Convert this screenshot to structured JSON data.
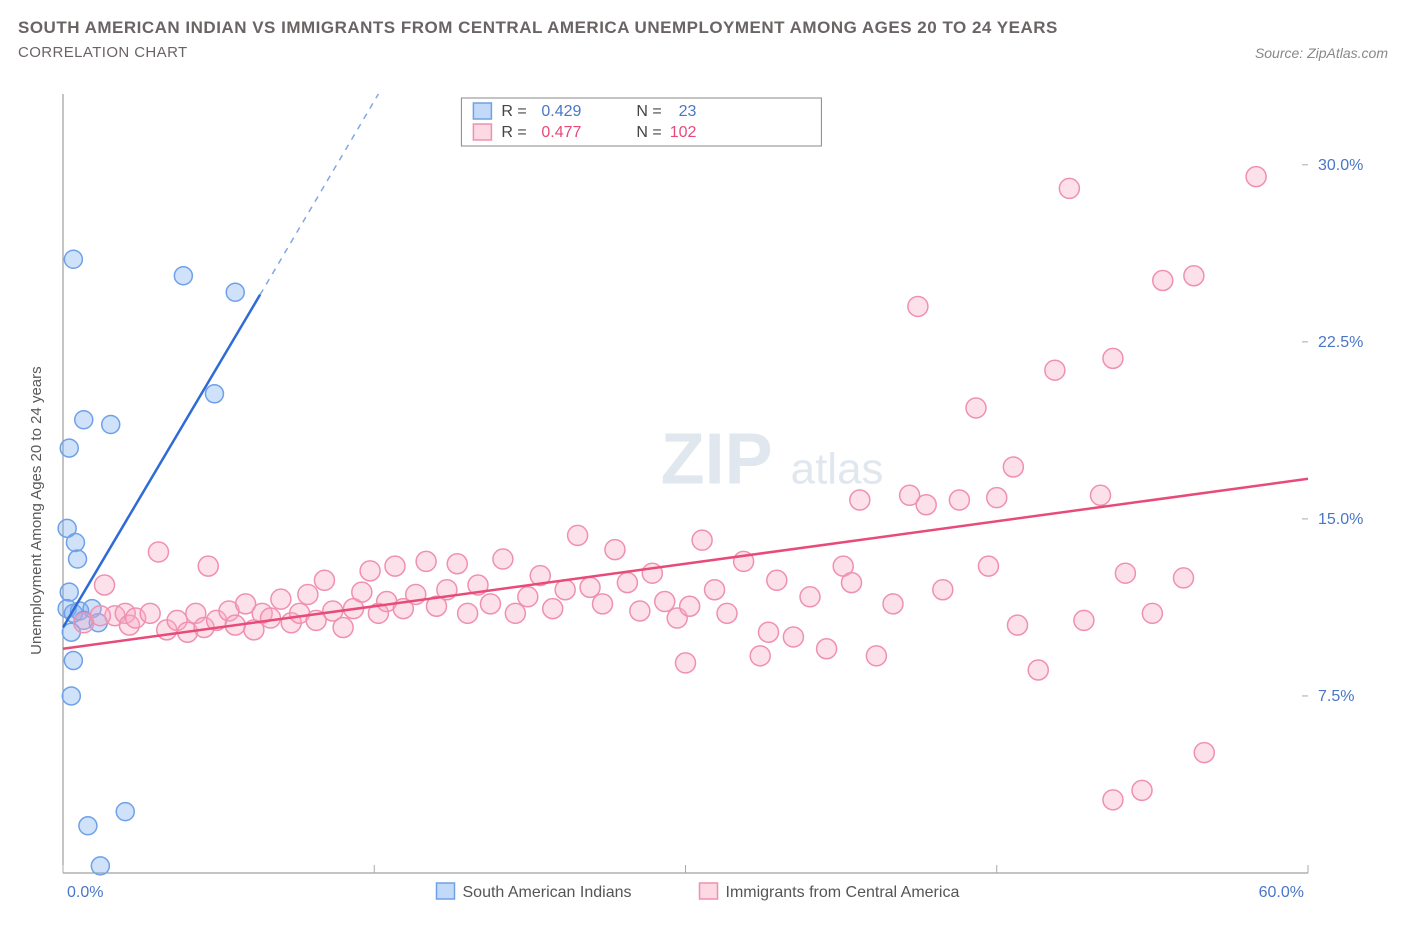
{
  "title": "SOUTH AMERICAN INDIAN VS IMMIGRANTS FROM CENTRAL AMERICA UNEMPLOYMENT AMONG AGES 20 TO 24 YEARS",
  "subtitle": "CORRELATION CHART",
  "source": "Source: ZipAtlas.com",
  "watermark_a": "ZIP",
  "watermark_b": "atlas",
  "chart": {
    "type": "scatter",
    "y_axis_title": "Unemployment Among Ages 20 to 24 years",
    "xlim": [
      0,
      60
    ],
    "ylim": [
      0,
      33
    ],
    "x_ticks": [
      {
        "v": 0,
        "label": "0.0%"
      },
      {
        "v": 60,
        "label": "60.0%"
      }
    ],
    "x_minor_ticks": [
      15,
      30,
      45
    ],
    "y_ticks": [
      {
        "v": 7.5,
        "label": "7.5%"
      },
      {
        "v": 15.0,
        "label": "15.0%"
      },
      {
        "v": 22.5,
        "label": "22.5%"
      },
      {
        "v": 30.0,
        "label": "30.0%"
      }
    ],
    "plot_bg": "#ffffff",
    "grid_color": "#aaaaaa",
    "series": [
      {
        "name": "South American Indians",
        "color_fill": "rgba(120,170,240,0.35)",
        "color_stroke": "#6fa1e8",
        "trend_color": "#2e6bd6",
        "marker_r": 9,
        "R": "0.429",
        "N": "23",
        "trend": {
          "x1": 0,
          "y1": 10.4,
          "x2": 9.5,
          "y2": 24.5
        },
        "trend_ext": {
          "x1": 9.5,
          "y1": 24.5,
          "x2": 15.2,
          "y2": 33
        },
        "points": [
          [
            0.5,
            26.0
          ],
          [
            5.8,
            25.3
          ],
          [
            8.3,
            24.6
          ],
          [
            1.0,
            19.2
          ],
          [
            2.3,
            19.0
          ],
          [
            7.3,
            20.3
          ],
          [
            0.3,
            18.0
          ],
          [
            0.2,
            14.6
          ],
          [
            0.6,
            14.0
          ],
          [
            0.7,
            13.3
          ],
          [
            0.3,
            11.9
          ],
          [
            0.2,
            11.2
          ],
          [
            0.5,
            11.0
          ],
          [
            0.8,
            11.1
          ],
          [
            1.4,
            11.2
          ],
          [
            1.0,
            10.7
          ],
          [
            1.7,
            10.6
          ],
          [
            0.4,
            10.2
          ],
          [
            0.5,
            9.0
          ],
          [
            0.4,
            7.5
          ],
          [
            3.0,
            2.6
          ],
          [
            1.2,
            2.0
          ],
          [
            1.8,
            0.3
          ]
        ]
      },
      {
        "name": "Immigrants from Central America",
        "color_fill": "rgba(250,170,195,0.35)",
        "color_stroke": "#f090b0",
        "trend_color": "#e84a7a",
        "marker_r": 10,
        "R": "0.477",
        "N": "102",
        "trend": {
          "x1": 0,
          "y1": 9.5,
          "x2": 60,
          "y2": 16.7
        },
        "points": [
          [
            2.0,
            12.2
          ],
          [
            2.5,
            10.9
          ],
          [
            3.0,
            11.0
          ],
          [
            3.2,
            10.5
          ],
          [
            3.5,
            10.8
          ],
          [
            1.0,
            10.6
          ],
          [
            1.8,
            10.9
          ],
          [
            4.2,
            11.0
          ],
          [
            4.6,
            13.6
          ],
          [
            5.0,
            10.3
          ],
          [
            5.5,
            10.7
          ],
          [
            6.0,
            10.2
          ],
          [
            6.4,
            11.0
          ],
          [
            6.8,
            10.4
          ],
          [
            7.0,
            13.0
          ],
          [
            7.4,
            10.7
          ],
          [
            8.0,
            11.1
          ],
          [
            8.3,
            10.5
          ],
          [
            8.8,
            11.4
          ],
          [
            9.2,
            10.3
          ],
          [
            9.6,
            11.0
          ],
          [
            10.0,
            10.8
          ],
          [
            10.5,
            11.6
          ],
          [
            11.0,
            10.6
          ],
          [
            11.4,
            11.0
          ],
          [
            11.8,
            11.8
          ],
          [
            12.2,
            10.7
          ],
          [
            12.6,
            12.4
          ],
          [
            13.0,
            11.1
          ],
          [
            13.5,
            10.4
          ],
          [
            14.0,
            11.2
          ],
          [
            14.4,
            11.9
          ],
          [
            14.8,
            12.8
          ],
          [
            15.2,
            11.0
          ],
          [
            15.6,
            11.5
          ],
          [
            16.0,
            13.0
          ],
          [
            16.4,
            11.2
          ],
          [
            17.0,
            11.8
          ],
          [
            17.5,
            13.2
          ],
          [
            18.0,
            11.3
          ],
          [
            18.5,
            12.0
          ],
          [
            19.0,
            13.1
          ],
          [
            19.5,
            11.0
          ],
          [
            20.0,
            12.2
          ],
          [
            20.6,
            11.4
          ],
          [
            21.2,
            13.3
          ],
          [
            21.8,
            11.0
          ],
          [
            22.4,
            11.7
          ],
          [
            23.0,
            12.6
          ],
          [
            23.6,
            11.2
          ],
          [
            24.2,
            12.0
          ],
          [
            24.8,
            14.3
          ],
          [
            25.4,
            12.1
          ],
          [
            26.0,
            11.4
          ],
          [
            26.6,
            13.7
          ],
          [
            27.2,
            12.3
          ],
          [
            27.8,
            11.1
          ],
          [
            28.4,
            12.7
          ],
          [
            29.0,
            11.5
          ],
          [
            29.6,
            10.8
          ],
          [
            30.2,
            11.3
          ],
          [
            30.8,
            14.1
          ],
          [
            31.4,
            12.0
          ],
          [
            32.0,
            11.0
          ],
          [
            32.8,
            13.2
          ],
          [
            33.6,
            9.2
          ],
          [
            34.4,
            12.4
          ],
          [
            35.2,
            10.0
          ],
          [
            36.0,
            11.7
          ],
          [
            36.8,
            9.5
          ],
          [
            37.6,
            13.0
          ],
          [
            38.4,
            15.8
          ],
          [
            39.2,
            9.2
          ],
          [
            40.0,
            11.4
          ],
          [
            40.8,
            16.0
          ],
          [
            41.6,
            15.6
          ],
          [
            42.4,
            12.0
          ],
          [
            43.2,
            15.8
          ],
          [
            44.0,
            19.7
          ],
          [
            41.2,
            24.0
          ],
          [
            45.0,
            15.9
          ],
          [
            45.8,
            17.2
          ],
          [
            46.0,
            10.5
          ],
          [
            47.0,
            8.6
          ],
          [
            47.8,
            21.3
          ],
          [
            48.5,
            29.0
          ],
          [
            49.2,
            10.7
          ],
          [
            50.0,
            16.0
          ],
          [
            50.6,
            21.8
          ],
          [
            50.6,
            3.1
          ],
          [
            51.2,
            12.7
          ],
          [
            52.0,
            3.5
          ],
          [
            53.0,
            25.1
          ],
          [
            54.0,
            12.5
          ],
          [
            54.5,
            25.3
          ],
          [
            55.0,
            5.1
          ],
          [
            57.5,
            29.5
          ],
          [
            52.5,
            11.0
          ],
          [
            44.6,
            13.0
          ],
          [
            38.0,
            12.3
          ],
          [
            34.0,
            10.2
          ],
          [
            30.0,
            8.9
          ]
        ]
      }
    ],
    "legend_top": {
      "label_R": "R =",
      "label_N": "N ="
    },
    "legend_bottom": [
      {
        "series": 0
      },
      {
        "series": 1
      }
    ]
  }
}
